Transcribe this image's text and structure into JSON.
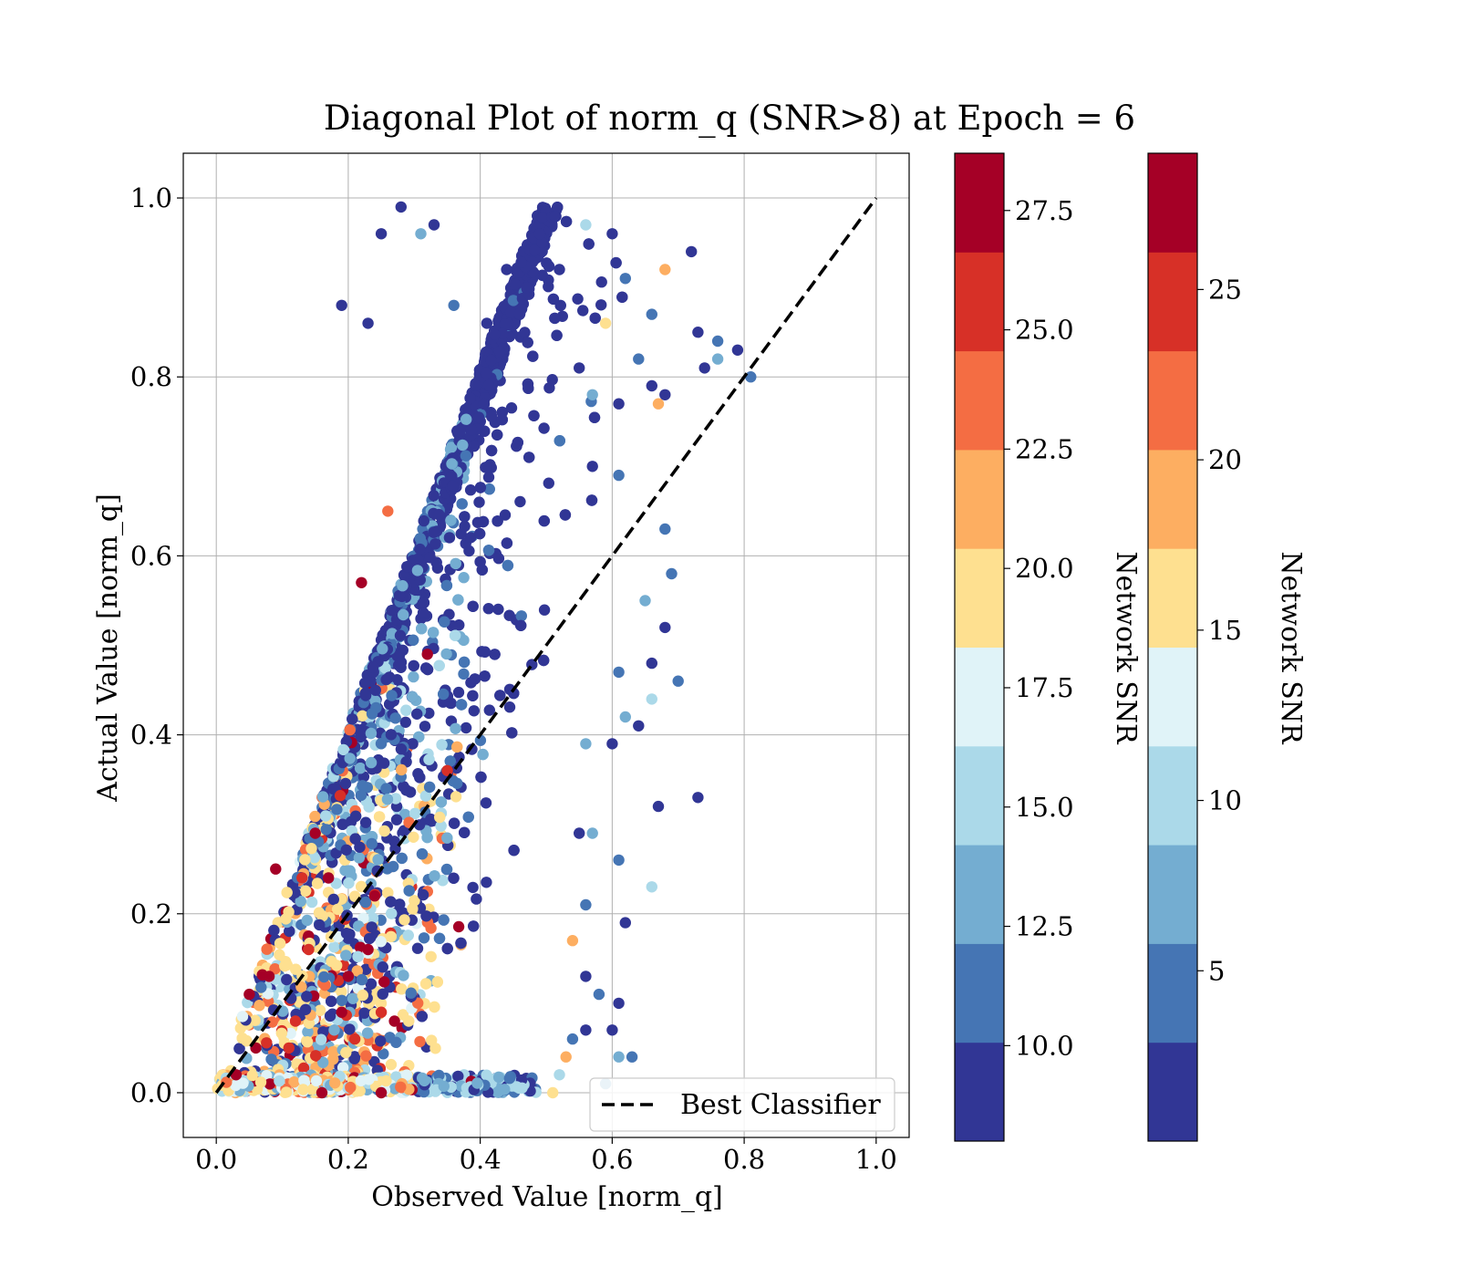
{
  "chart_data": {
    "type": "scatter",
    "title": "Diagonal Plot of norm_q (SNR>8) at Epoch = 6",
    "xlabel": "Observed Value [norm_q]",
    "ylabel": "Actual Value [norm_q]",
    "xlim": [
      -0.05,
      1.05
    ],
    "ylim": [
      -0.05,
      1.05
    ],
    "x_ticks": [
      0.0,
      0.2,
      0.4,
      0.6,
      0.8,
      1.0
    ],
    "x_tick_labels": [
      "0.0",
      "0.2",
      "0.4",
      "0.6",
      "0.8",
      "1.0"
    ],
    "y_ticks": [
      0.0,
      0.2,
      0.4,
      0.6,
      0.8,
      1.0
    ],
    "y_tick_labels": [
      "0.0",
      "0.2",
      "0.4",
      "0.6",
      "0.8",
      "1.0"
    ],
    "grid": true,
    "legend": {
      "position": "lower right",
      "entries": [
        "Best Classifier"
      ]
    },
    "reference_line": {
      "name": "Best Classifier",
      "x": [
        0.0,
        1.0
      ],
      "y": [
        0.0,
        1.0
      ],
      "style": "dashed",
      "color": "#000000"
    },
    "point_color_scale": [
      "#313695",
      "#4575b4",
      "#74add1",
      "#abd9e9",
      "#e0f3f8",
      "#fee090",
      "#fdae61",
      "#f46d43",
      "#d73027",
      "#a50026"
    ],
    "points": [
      {
        "x": 0.28,
        "y": 0.99,
        "snr": 9
      },
      {
        "x": 0.33,
        "y": 0.97,
        "snr": 9
      },
      {
        "x": 0.31,
        "y": 0.96,
        "snr": 14
      },
      {
        "x": 0.25,
        "y": 0.96,
        "snr": 9
      },
      {
        "x": 0.49,
        "y": 0.96,
        "snr": 9
      },
      {
        "x": 0.56,
        "y": 0.97,
        "snr": 15
      },
      {
        "x": 0.6,
        "y": 0.96,
        "snr": 10
      },
      {
        "x": 0.72,
        "y": 0.94,
        "snr": 9
      },
      {
        "x": 0.68,
        "y": 0.92,
        "snr": 22
      },
      {
        "x": 0.62,
        "y": 0.91,
        "snr": 12
      },
      {
        "x": 0.52,
        "y": 0.92,
        "snr": 9
      },
      {
        "x": 0.44,
        "y": 0.92,
        "snr": 9
      },
      {
        "x": 0.19,
        "y": 0.88,
        "snr": 9
      },
      {
        "x": 0.23,
        "y": 0.86,
        "snr": 10
      },
      {
        "x": 0.36,
        "y": 0.88,
        "snr": 12
      },
      {
        "x": 0.41,
        "y": 0.86,
        "snr": 9
      },
      {
        "x": 0.59,
        "y": 0.86,
        "snr": 19
      },
      {
        "x": 0.66,
        "y": 0.87,
        "snr": 12
      },
      {
        "x": 0.73,
        "y": 0.85,
        "snr": 9
      },
      {
        "x": 0.76,
        "y": 0.84,
        "snr": 11
      },
      {
        "x": 0.79,
        "y": 0.83,
        "snr": 9
      },
      {
        "x": 0.76,
        "y": 0.82,
        "snr": 13
      },
      {
        "x": 0.74,
        "y": 0.81,
        "snr": 9
      },
      {
        "x": 0.81,
        "y": 0.8,
        "snr": 12
      },
      {
        "x": 0.64,
        "y": 0.82,
        "snr": 12
      },
      {
        "x": 0.55,
        "y": 0.81,
        "snr": 9
      },
      {
        "x": 0.66,
        "y": 0.79,
        "snr": 9
      },
      {
        "x": 0.67,
        "y": 0.77,
        "snr": 22
      },
      {
        "x": 0.68,
        "y": 0.78,
        "snr": 9
      },
      {
        "x": 0.61,
        "y": 0.77,
        "snr": 9
      },
      {
        "x": 0.57,
        "y": 0.78,
        "snr": 13
      },
      {
        "x": 0.57,
        "y": 0.7,
        "snr": 9
      },
      {
        "x": 0.61,
        "y": 0.69,
        "snr": 12
      },
      {
        "x": 0.68,
        "y": 0.63,
        "snr": 11
      },
      {
        "x": 0.69,
        "y": 0.58,
        "snr": 12
      },
      {
        "x": 0.65,
        "y": 0.55,
        "snr": 13
      },
      {
        "x": 0.68,
        "y": 0.52,
        "snr": 9
      },
      {
        "x": 0.66,
        "y": 0.48,
        "snr": 9
      },
      {
        "x": 0.7,
        "y": 0.46,
        "snr": 11
      },
      {
        "x": 0.66,
        "y": 0.44,
        "snr": 15
      },
      {
        "x": 0.61,
        "y": 0.47,
        "snr": 12
      },
      {
        "x": 0.62,
        "y": 0.42,
        "snr": 14
      },
      {
        "x": 0.64,
        "y": 0.41,
        "snr": 9
      },
      {
        "x": 0.6,
        "y": 0.39,
        "snr": 9
      },
      {
        "x": 0.56,
        "y": 0.39,
        "snr": 13
      },
      {
        "x": 0.73,
        "y": 0.33,
        "snr": 9
      },
      {
        "x": 0.67,
        "y": 0.32,
        "snr": 9
      },
      {
        "x": 0.57,
        "y": 0.29,
        "snr": 13
      },
      {
        "x": 0.55,
        "y": 0.29,
        "snr": 9
      },
      {
        "x": 0.61,
        "y": 0.26,
        "snr": 12
      },
      {
        "x": 0.66,
        "y": 0.23,
        "snr": 15
      },
      {
        "x": 0.56,
        "y": 0.21,
        "snr": 12
      },
      {
        "x": 0.62,
        "y": 0.19,
        "snr": 9
      },
      {
        "x": 0.54,
        "y": 0.17,
        "snr": 21
      },
      {
        "x": 0.56,
        "y": 0.13,
        "snr": 9
      },
      {
        "x": 0.58,
        "y": 0.11,
        "snr": 12
      },
      {
        "x": 0.61,
        "y": 0.1,
        "snr": 9
      },
      {
        "x": 0.56,
        "y": 0.07,
        "snr": 9
      },
      {
        "x": 0.6,
        "y": 0.07,
        "snr": 9
      },
      {
        "x": 0.54,
        "y": 0.06,
        "snr": 12
      },
      {
        "x": 0.61,
        "y": 0.04,
        "snr": 14
      },
      {
        "x": 0.63,
        "y": 0.04,
        "snr": 12
      },
      {
        "x": 0.53,
        "y": 0.04,
        "snr": 21
      },
      {
        "x": 0.59,
        "y": 0.01,
        "snr": 13
      },
      {
        "x": 0.51,
        "y": 0.0,
        "snr": 20
      },
      {
        "x": 0.52,
        "y": 0.02,
        "snr": 16
      },
      {
        "x": 0.26,
        "y": 0.65,
        "snr": 23
      },
      {
        "x": 0.22,
        "y": 0.57,
        "snr": 27
      },
      {
        "x": 0.32,
        "y": 0.49,
        "snr": 27
      },
      {
        "x": 0.35,
        "y": 0.36,
        "snr": 26
      },
      {
        "x": 0.15,
        "y": 0.29,
        "snr": 27
      },
      {
        "x": 0.17,
        "y": 0.24,
        "snr": 27
      },
      {
        "x": 0.24,
        "y": 0.22,
        "snr": 27
      },
      {
        "x": 0.13,
        "y": 0.24,
        "snr": 26
      },
      {
        "x": 0.09,
        "y": 0.25,
        "snr": 28
      },
      {
        "x": 0.23,
        "y": 0.16,
        "snr": 28
      },
      {
        "x": 0.2,
        "y": 0.13,
        "snr": 27
      },
      {
        "x": 0.14,
        "y": 0.16,
        "snr": 26
      },
      {
        "x": 0.08,
        "y": 0.13,
        "snr": 27
      },
      {
        "x": 0.05,
        "y": 0.11,
        "snr": 27
      },
      {
        "x": 0.19,
        "y": 0.09,
        "snr": 27
      },
      {
        "x": 0.25,
        "y": 0.09,
        "snr": 26
      },
      {
        "x": 0.27,
        "y": 0.08,
        "snr": 27
      },
      {
        "x": 0.11,
        "y": 0.05,
        "snr": 26
      },
      {
        "x": 0.06,
        "y": 0.05,
        "snr": 28
      },
      {
        "x": 0.03,
        "y": 0.02,
        "snr": 27
      },
      {
        "x": 0.16,
        "y": 0.0,
        "snr": 28
      },
      {
        "x": 0.25,
        "y": 0.0,
        "snr": 27
      },
      {
        "x": 0.21,
        "y": 0.06,
        "snr": 25
      },
      {
        "x": 0.12,
        "y": 0.08,
        "snr": 25
      }
    ],
    "colorbars": [
      {
        "label": "Network SNR",
        "range": [
          8,
          28.7
        ],
        "ticks": [
          10.0,
          12.5,
          15.0,
          17.5,
          20.0,
          22.5,
          25.0,
          27.5
        ],
        "tick_labels": [
          "10.0",
          "12.5",
          "15.0",
          "17.5",
          "20.0",
          "22.5",
          "25.0",
          "27.5"
        ]
      },
      {
        "label": "Network SNR",
        "range": [
          0,
          29
        ],
        "ticks": [
          5,
          10,
          15,
          20,
          25
        ],
        "tick_labels": [
          "5",
          "10",
          "15",
          "20",
          "25"
        ]
      }
    ]
  }
}
